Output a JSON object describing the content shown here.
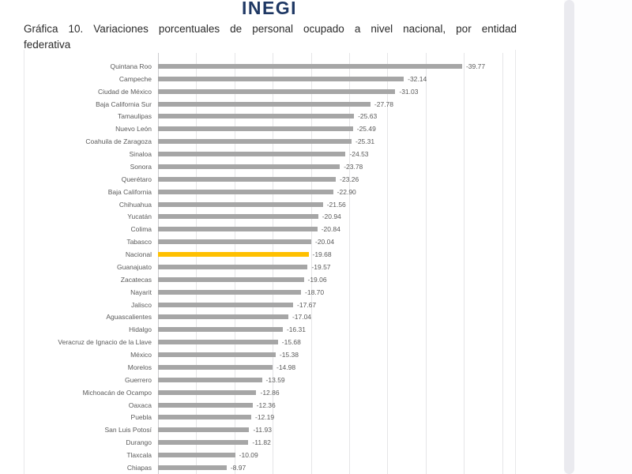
{
  "page": {
    "logo_text": "INEGI",
    "title": "Gráfica 10. Variaciones porcentuales de personal ocupado a nivel nacional, por entidad federativa",
    "title_lines": [
      "Gráfica 10. Variaciones porcentuales de personal ocupado a nivel nacional, por entidad",
      "federativa"
    ]
  },
  "colors": {
    "bar": "#a6a6a6",
    "highlight": "#ffc000",
    "logo": "#1f3864",
    "grid": "#e5e5e7",
    "text": "#595959"
  },
  "chart_data": {
    "type": "bar",
    "orientation": "horizontal",
    "title": "Gráfica 10. Variaciones porcentuales de personal ocupado a nivel nacional, por entidad federativa",
    "xlabel": "",
    "ylabel": "",
    "grid": true,
    "gridline_step": 5,
    "axis_magnitude_range": [
      0,
      45
    ],
    "legend": null,
    "highlight_category": "Nacional",
    "categories": [
      "Quintana Roo",
      "Campeche",
      "Ciudad de México",
      "Baja California Sur",
      "Tamaulipas",
      "Nuevo León",
      "Coahuila de Zaragoza",
      "Sinaloa",
      "Sonora",
      "Querétaro",
      "Baja California",
      "Chihuahua",
      "Yucatán",
      "Colima",
      "Tabasco",
      "Nacional",
      "Guanajuato",
      "Zacatecas",
      "Nayarit",
      "Jalisco",
      "Aguascalientes",
      "Hidalgo",
      "Veracruz de Ignacio de la Llave",
      "México",
      "Morelos",
      "Guerrero",
      "Michoacán de Ocampo",
      "Oaxaca",
      "Puebla",
      "San Luis Potosí",
      "Durango",
      "Tlaxcala",
      "Chiapas"
    ],
    "values": [
      -39.77,
      -32.14,
      -31.03,
      -27.78,
      -25.63,
      -25.49,
      -25.31,
      -24.53,
      -23.78,
      -23.26,
      -22.9,
      -21.56,
      -20.94,
      -20.84,
      -20.04,
      -19.68,
      -19.57,
      -19.06,
      -18.7,
      -17.67,
      -17.04,
      -16.31,
      -15.68,
      -15.38,
      -14.98,
      -13.59,
      -12.86,
      -12.36,
      -12.19,
      -11.93,
      -11.82,
      -10.09,
      -8.97
    ],
    "value_labels": [
      "-39.77",
      "-32.14",
      "-31.03",
      "-27.78",
      "-25.63",
      "-25.49",
      "-25.31",
      "-24.53",
      "-23.78",
      "-23.26",
      "-22.90",
      "-21.56",
      "-20.94",
      "-20.84",
      "-20.04",
      "-19.68",
      "-19.57",
      "-19.06",
      "-18.70",
      "-17.67",
      "-17.04",
      "-16.31",
      "-15.68",
      "-15.38",
      "-14.98",
      "-13.59",
      "-12.86",
      "-12.36",
      "-12.19",
      "-11.93",
      "-11.82",
      "-10.09",
      "-8.97"
    ]
  }
}
